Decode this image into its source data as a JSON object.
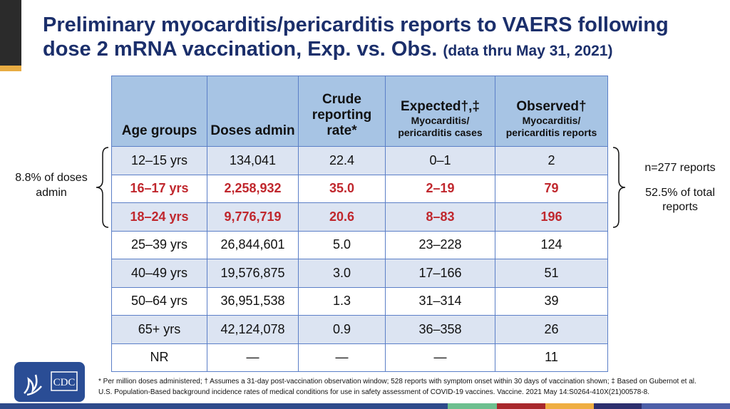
{
  "title": {
    "main": "Preliminary myocarditis/pericarditis reports to VAERS following dose 2 mRNA vaccination, Exp. vs. Obs.",
    "sub": "(data thru May 31, 2021)"
  },
  "table": {
    "headers": [
      {
        "main": "Age groups",
        "sub": ""
      },
      {
        "main": "Doses admin",
        "sub": ""
      },
      {
        "main": "Crude reporting rate*",
        "sub": ""
      },
      {
        "main": "Expected†,‡",
        "sub": "Myocarditis/ pericarditis cases"
      },
      {
        "main": "Observed†",
        "sub": "Myocarditis/ pericarditis reports"
      }
    ],
    "rows": [
      [
        "12–15 yrs",
        "134,041",
        "22.4",
        "0–1",
        "2"
      ],
      [
        "16–17 yrs",
        "2,258,932",
        "35.0",
        "2–19",
        "79"
      ],
      [
        "18–24 yrs",
        "9,776,719",
        "20.6",
        "8–83",
        "196"
      ],
      [
        "25–39 yrs",
        "26,844,601",
        "5.0",
        "23–228",
        "124"
      ],
      [
        "40–49 yrs",
        "19,576,875",
        "3.0",
        "17–166",
        "51"
      ],
      [
        "50–64 yrs",
        "36,951,538",
        "1.3",
        "31–314",
        "39"
      ],
      [
        "65+ yrs",
        "42,124,078",
        "0.9",
        "36–358",
        "26"
      ],
      [
        "NR",
        "—",
        "—",
        "—",
        "11"
      ]
    ],
    "highlight_rows": [
      1,
      2
    ],
    "highlight_color": "#c0272d"
  },
  "left_note": "8.8% of doses admin",
  "right_note": {
    "reports": "n=277 reports",
    "percent": "52.5% of total reports"
  },
  "logo": {
    "text": "CDC"
  },
  "footnote": "* Per million doses administered; † Assumes a 31-day post-vaccination observation window; 528 reports with symptom onset within 30 days of vaccination shown; ‡ Based on Gubernot et al. U.S. Population-Based background incidence rates of medical conditions for use in safety assessment of COVID-19 vaccines. Vaccine. 2021 May 14:S0264-410X(21)00578-8.",
  "colors": {
    "title": "#1b2f6b",
    "header": "#a7c4e4",
    "band": "#dce4f2",
    "border": "#5b7fc7"
  }
}
